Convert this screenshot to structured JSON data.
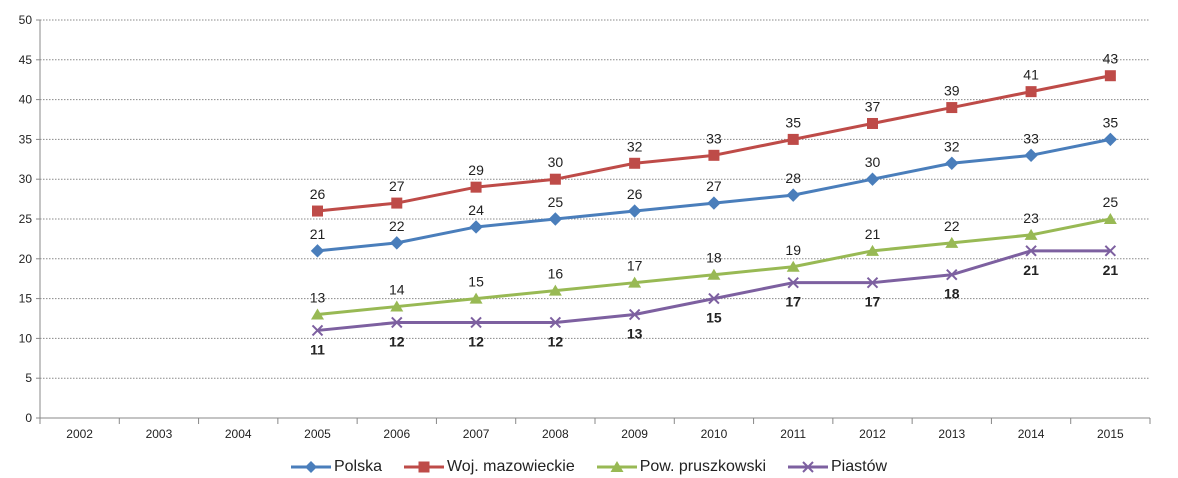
{
  "chart_data": {
    "type": "line",
    "x": [
      "2002",
      "2003",
      "2004",
      "2005",
      "2006",
      "2007",
      "2008",
      "2009",
      "2010",
      "2011",
      "2012",
      "2013",
      "2014",
      "2015"
    ],
    "ylim": [
      0,
      50
    ],
    "yticks": [
      0,
      5,
      10,
      15,
      20,
      25,
      30,
      35,
      40,
      45,
      50
    ],
    "grid": true,
    "legend_position": "bottom",
    "series": [
      {
        "name": "Polska",
        "color": "#4a7ebb",
        "marker": "diamond",
        "label_bold": false,
        "label_position": "above",
        "values": [
          null,
          null,
          null,
          21,
          22,
          24,
          25,
          26,
          27,
          28,
          30,
          32,
          33,
          35
        ]
      },
      {
        "name": "Woj. mazowieckie",
        "color": "#be4b48",
        "marker": "square",
        "label_bold": false,
        "label_position": "above",
        "values": [
          null,
          null,
          null,
          26,
          27,
          29,
          30,
          32,
          33,
          35,
          37,
          39,
          41,
          43
        ]
      },
      {
        "name": "Pow. pruszkowski",
        "color": "#98b954",
        "marker": "triangle",
        "label_bold": false,
        "label_position": "above",
        "values": [
          null,
          null,
          null,
          13,
          14,
          15,
          16,
          17,
          18,
          19,
          21,
          22,
          23,
          25
        ]
      },
      {
        "name": "Piastów",
        "color": "#7d60a0",
        "marker": "x",
        "label_bold": true,
        "label_position": "below",
        "values": [
          null,
          null,
          null,
          11,
          12,
          12,
          12,
          13,
          15,
          17,
          17,
          18,
          21,
          21
        ]
      }
    ]
  }
}
